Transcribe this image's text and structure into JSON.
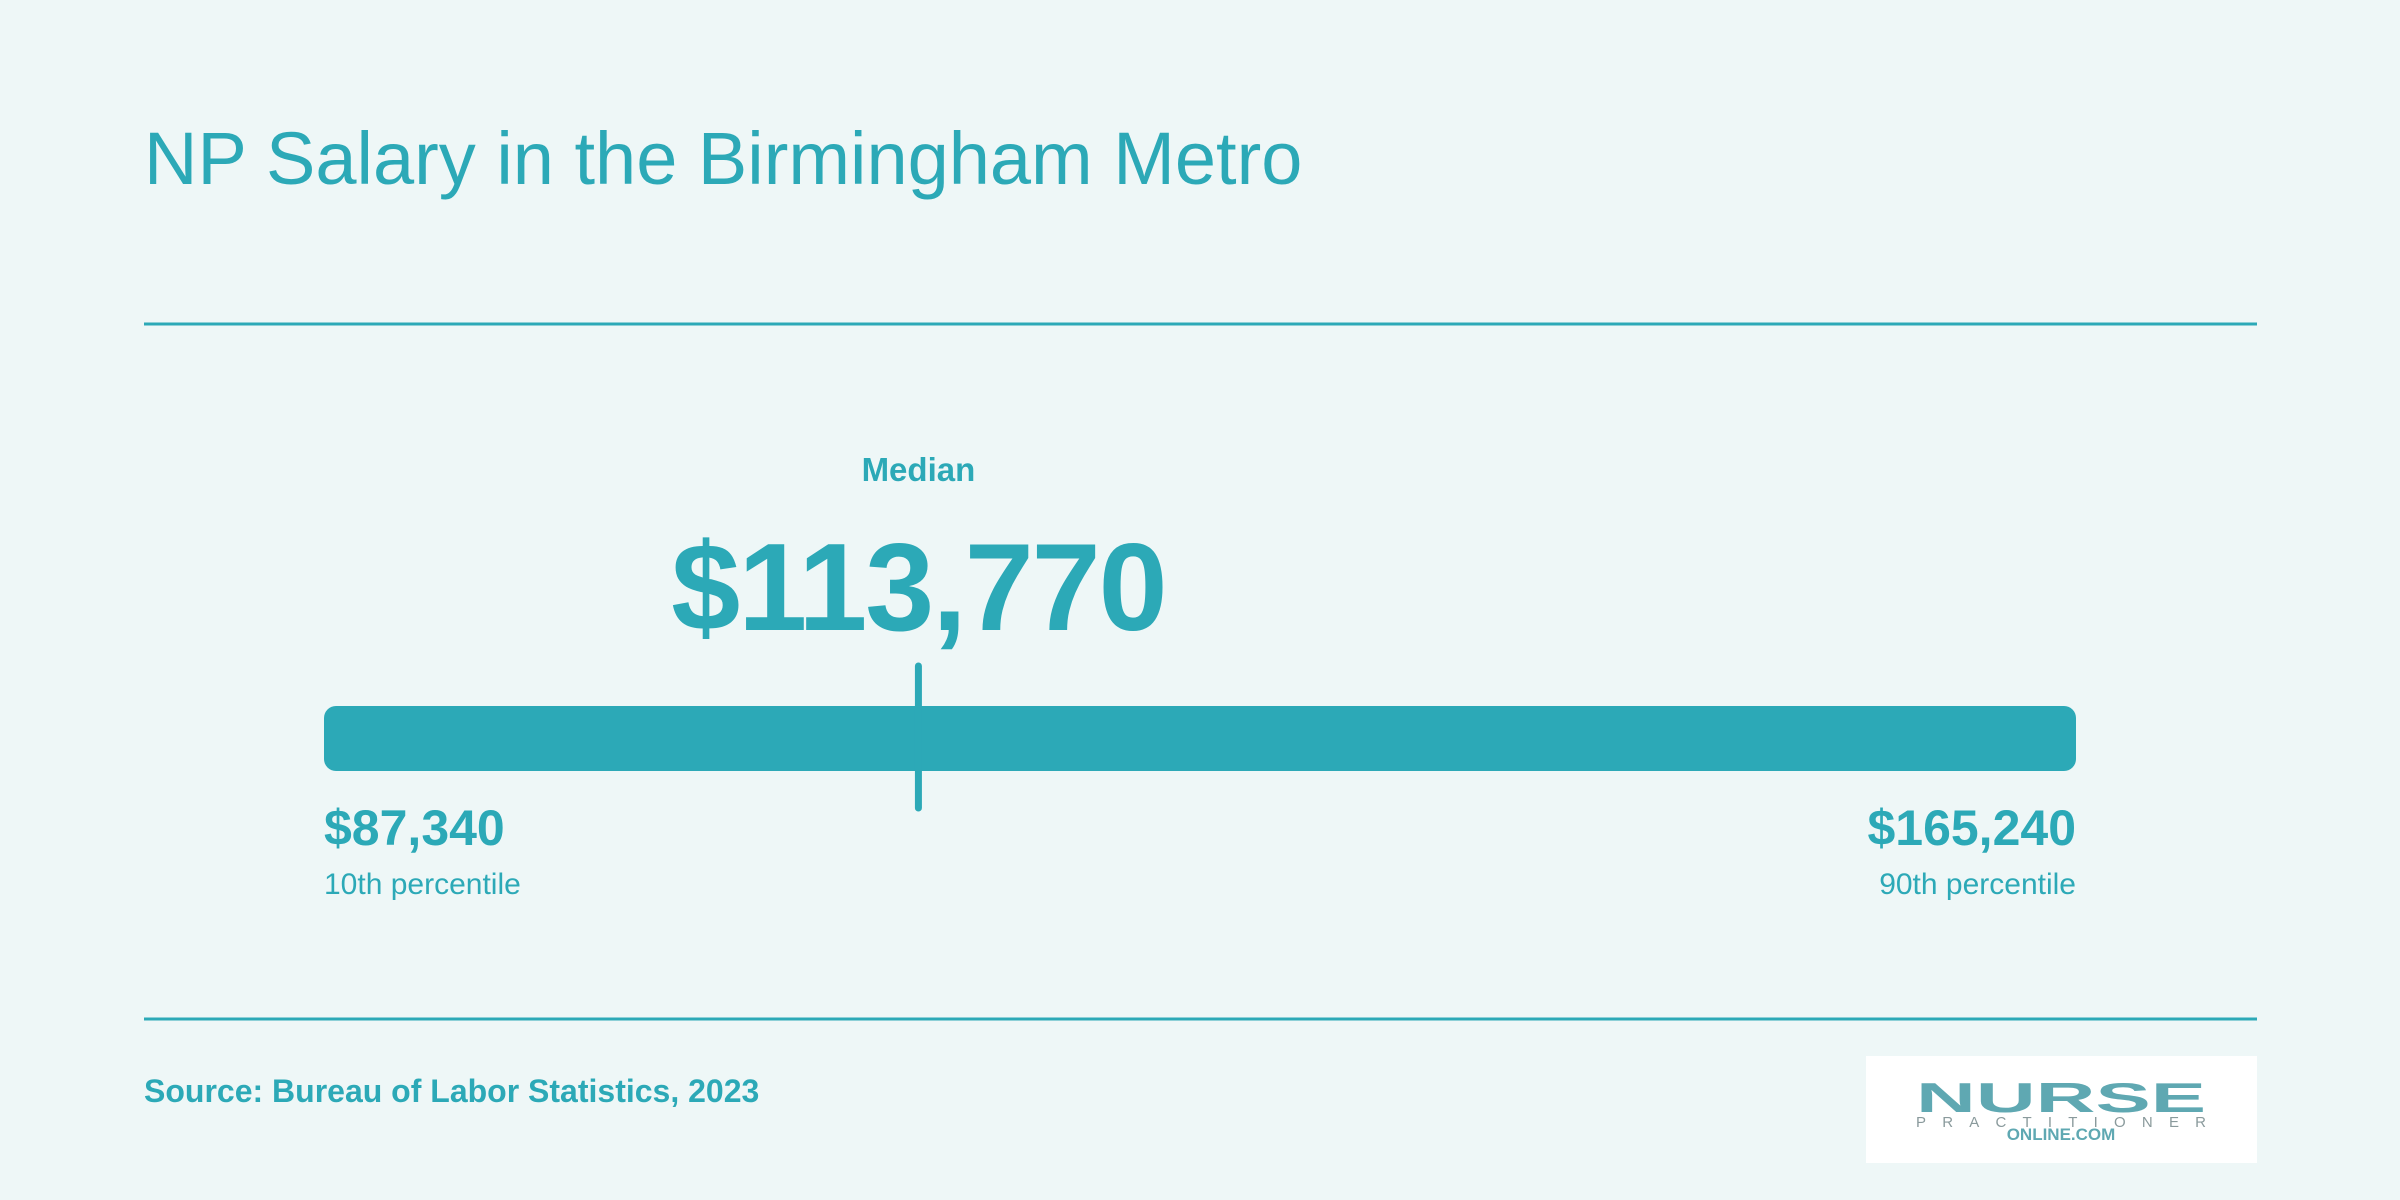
{
  "chart_data": {
    "type": "range",
    "title": "NP Salary in the Birmingham Metro",
    "categories": [
      "10th percentile",
      "Median",
      "90th percentile"
    ],
    "values": [
      87340,
      113770,
      165240
    ],
    "value_labels": [
      "$87,340",
      "$113,770",
      "$165,240"
    ],
    "xlim": [
      87340,
      165240
    ],
    "color": "#2ca9b7",
    "source": "Source: Bureau of Labor Statistics, 2023"
  },
  "logo": {
    "line1": "NURSE",
    "line2": "PRACTITIONER",
    "line3": "ONLINE.COM"
  }
}
